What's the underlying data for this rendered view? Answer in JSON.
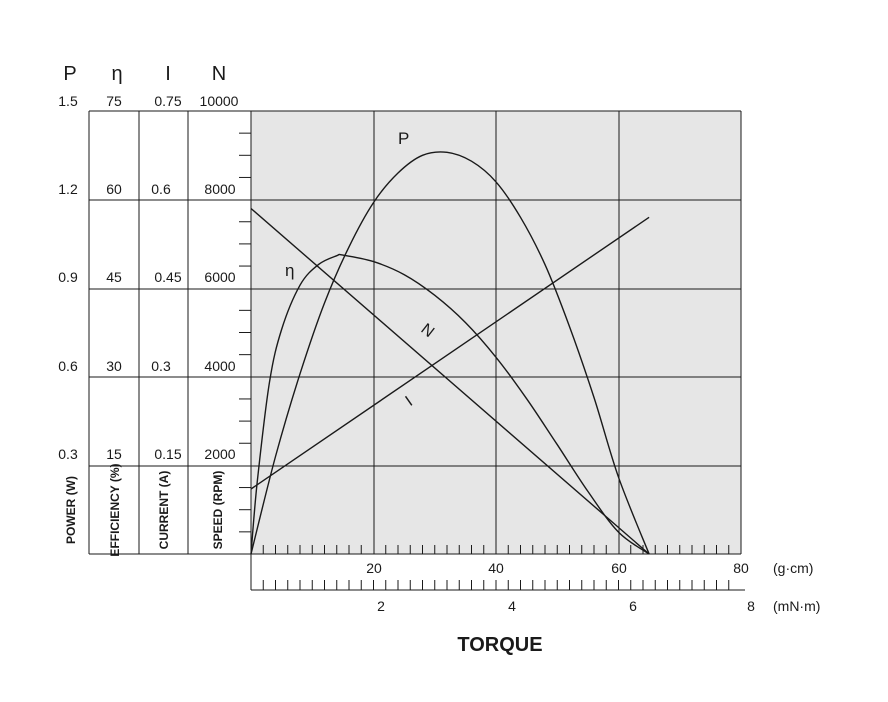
{
  "chart_data": {
    "type": "line",
    "xlabel": "TORQUE",
    "x_units": [
      "(g·cm)",
      "(mN·m)"
    ],
    "x_axis_gcm": {
      "ticks": [
        "20",
        "40",
        "60",
        "80"
      ],
      "range": [
        0,
        80
      ]
    },
    "x_axis_mnm": {
      "ticks": [
        "2",
        "4",
        "6",
        "8"
      ],
      "range": [
        0,
        8
      ]
    },
    "y_axes": [
      {
        "symbol": "P",
        "label": "POWER (W)",
        "ticks": [
          "1.5",
          "1.2",
          "0.9",
          "0.6",
          "0.3"
        ],
        "range": [
          0,
          1.5
        ]
      },
      {
        "symbol": "η",
        "label": "EFFICIENCY (%)",
        "ticks": [
          "75",
          "60",
          "45",
          "30",
          "15"
        ],
        "range": [
          0,
          75
        ]
      },
      {
        "symbol": "I",
        "label": "CURRENT (A)",
        "ticks": [
          "0.75",
          "0.6",
          "0.45",
          "0.3",
          "0.15"
        ],
        "range": [
          0,
          0.75
        ]
      },
      {
        "symbol": "N",
        "label": "SPEED (RPM)",
        "ticks": [
          "10000",
          "8000",
          "6000",
          "4000",
          "2000"
        ],
        "range": [
          0,
          10000
        ]
      }
    ],
    "series": [
      {
        "name": "N",
        "axis": "N",
        "x": [
          0,
          65
        ],
        "y": [
          7800,
          0
        ]
      },
      {
        "name": "I",
        "axis": "I",
        "x": [
          0,
          65
        ],
        "y": [
          0.11,
          0.57
        ]
      },
      {
        "name": "P",
        "axis": "P",
        "x": [
          0,
          4,
          8,
          12,
          16,
          20,
          24,
          28,
          32,
          36,
          40,
          44,
          48,
          52,
          56,
          60,
          65
        ],
        "y": [
          0,
          0.33,
          0.61,
          0.85,
          1.04,
          1.19,
          1.29,
          1.35,
          1.36,
          1.33,
          1.26,
          1.14,
          0.98,
          0.77,
          0.53,
          0.26,
          0
        ]
      },
      {
        "name": "η",
        "axis": "η",
        "x": [
          0,
          1,
          3,
          5,
          8,
          11,
          14,
          15,
          20,
          25,
          30,
          35,
          40,
          45,
          50,
          55,
          60,
          65
        ],
        "y": [
          0,
          12,
          29,
          38,
          45.5,
          49,
          50.5,
          50.6,
          49.5,
          47.3,
          43.8,
          39.2,
          33.3,
          26.3,
          18.5,
          10.6,
          3.7,
          0
        ]
      }
    ],
    "grid": true,
    "plot_background": "#e6e6e6"
  }
}
